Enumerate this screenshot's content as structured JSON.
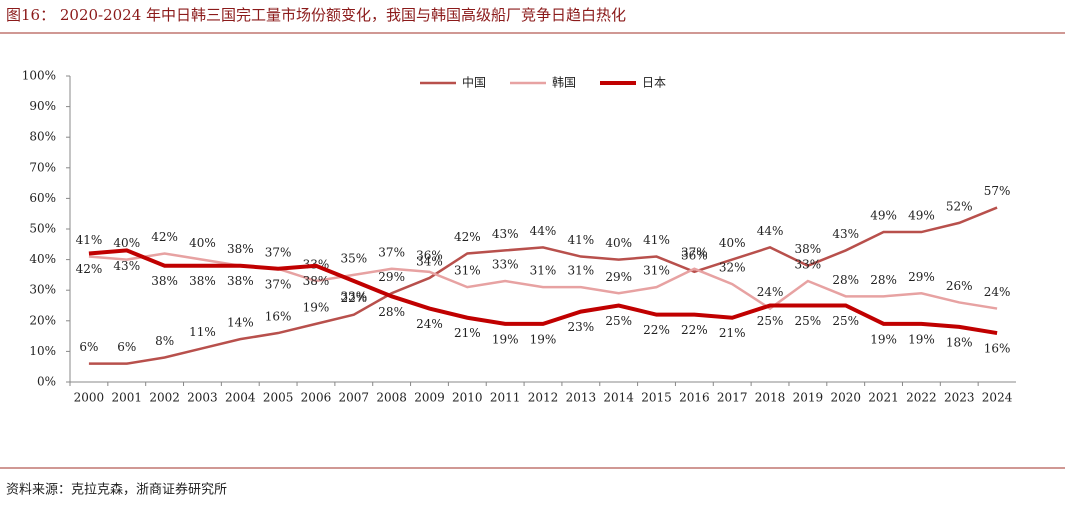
{
  "header": {
    "title": "图16：  2020-2024 年中日韩三国完工量市场份额变化，我国与韩国高级船厂竞争日趋白热化"
  },
  "footer": {
    "source": "资料来源：克拉克森，浙商证券研究所"
  },
  "chart_data": {
    "type": "line",
    "categories": [
      "2000",
      "2001",
      "2002",
      "2003",
      "2004",
      "2005",
      "2006",
      "2007",
      "2008",
      "2009",
      "2010",
      "2011",
      "2012",
      "2013",
      "2014",
      "2015",
      "2016",
      "2017",
      "2018",
      "2019",
      "2020",
      "2021",
      "2022",
      "2023",
      "2024"
    ],
    "ylim": [
      0,
      100
    ],
    "yticks": [
      {
        "value": 0,
        "label": "0%"
      },
      {
        "value": 10,
        "label": "10%"
      },
      {
        "value": 20,
        "label": "20%"
      },
      {
        "value": 30,
        "label": "30%"
      },
      {
        "value": 40,
        "label": "40%"
      },
      {
        "value": 50,
        "label": "50%"
      },
      {
        "value": 60,
        "label": "60%"
      },
      {
        "value": 70,
        "label": "70%"
      },
      {
        "value": 80,
        "label": "80%"
      },
      {
        "value": 90,
        "label": "90%"
      },
      {
        "value": 100,
        "label": "100%"
      }
    ],
    "legend": "top",
    "series": [
      {
        "name": "中国",
        "color": "#b8504c",
        "width": 2.5,
        "label_side": "above",
        "values": [
          6,
          6,
          8,
          11,
          14,
          16,
          19,
          22,
          29,
          34,
          42,
          43,
          44,
          41,
          40,
          41,
          36,
          40,
          44,
          38,
          43,
          49,
          49,
          52,
          57
        ],
        "value_labels": [
          "6%",
          "6%",
          "8%",
          "11%",
          "14%",
          "16%",
          "19%",
          "22%",
          "29%",
          "34%",
          "42%",
          "43%",
          "44%",
          "41%",
          "40%",
          "41%",
          "36%",
          "40%",
          "44%",
          "38%",
          "43%",
          "49%",
          "49%",
          "52%",
          "57%"
        ]
      },
      {
        "name": "韩国",
        "color": "#e7a2a2",
        "width": 2.5,
        "label_side": "above",
        "values": [
          41,
          40,
          42,
          40,
          38,
          37,
          33,
          35,
          37,
          36,
          31,
          33,
          31,
          31,
          29,
          31,
          37,
          32,
          24,
          33,
          28,
          28,
          29,
          26,
          24
        ],
        "value_labels": [
          "41%",
          "40%",
          "42%",
          "40%",
          "38%",
          "37%",
          "33%",
          "35%",
          "37%",
          "36%",
          "31%",
          "33%",
          "31%",
          "31%",
          "29%",
          "31%",
          "37%",
          "32%",
          "24%",
          "33%",
          "28%",
          "28%",
          "29%",
          "26%",
          "24%"
        ]
      },
      {
        "name": "日本",
        "color": "#c00000",
        "width": 4,
        "label_side": "below",
        "values": [
          42,
          43,
          38,
          38,
          38,
          37,
          38,
          33,
          28,
          24,
          21,
          19,
          19,
          23,
          25,
          22,
          22,
          21,
          25,
          25,
          25,
          19,
          19,
          18,
          16
        ],
        "value_labels": [
          "42%",
          "43%",
          "38%",
          "38%",
          "38%",
          "37%",
          "38%",
          "33%",
          "28%",
          "24%",
          "21%",
          "19%",
          "19%",
          "23%",
          "25%",
          "22%",
          "22%",
          "21%",
          "25%",
          "25%",
          "25%",
          "19%",
          "19%",
          "18%",
          "16%"
        ]
      }
    ]
  }
}
